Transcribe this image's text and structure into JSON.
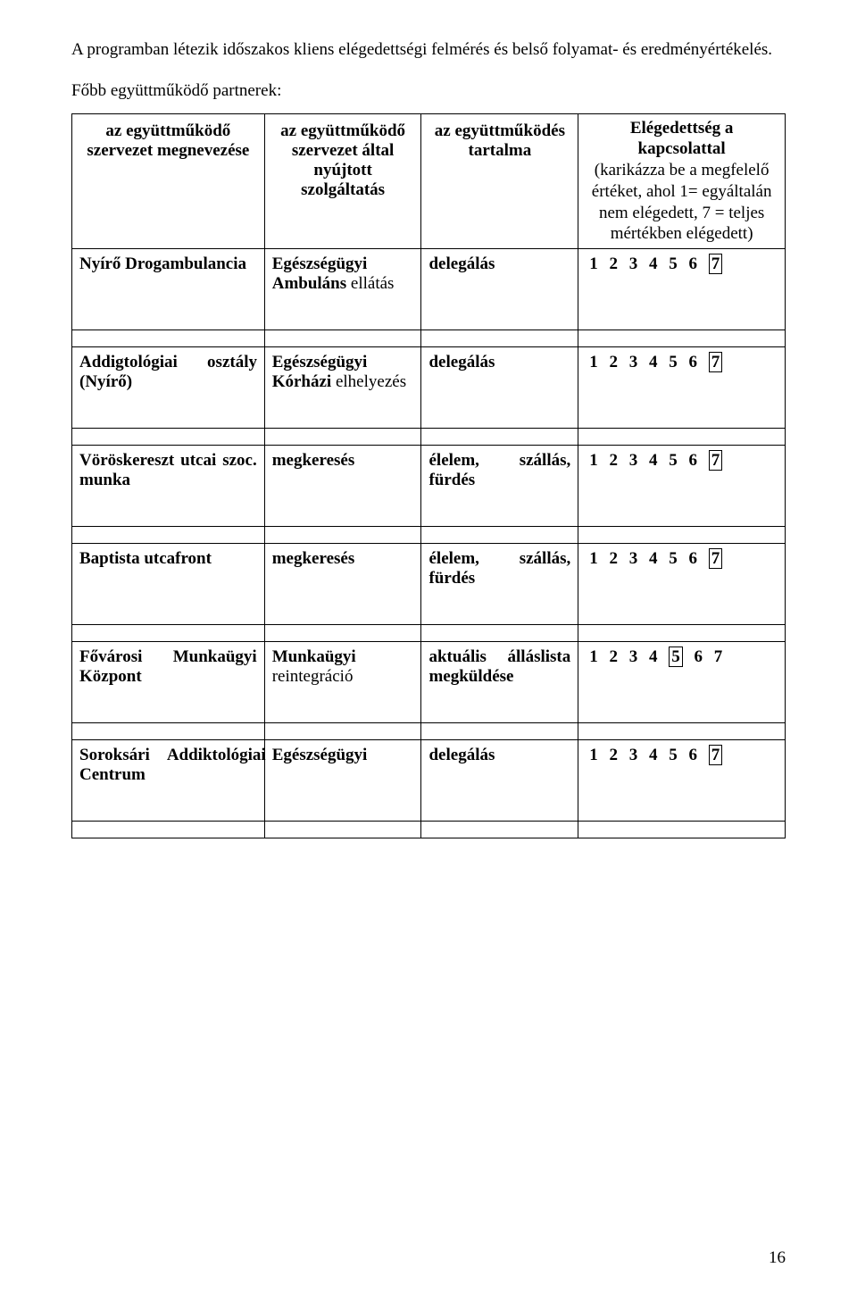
{
  "intro_paragraph": "A programban létezik időszakos kliens elégedettségi felmérés és belső folyamat- és eredményértékelés.",
  "subheading": "Főbb együttműködő partnerek:",
  "headers": {
    "col1": "az együttműködő szervezet megnevezése",
    "col2": "az együttműködő szervezet által nyújtott szolgáltatás",
    "col3": "az együttműködés tartalma",
    "col4_prefix": "Elégedettség a kapcsolattal",
    "col4_rest": "(karikázza be a megfelelő értéket, ahol 1= egyáltalán nem elégedett, 7 = teljes mértékben elégedett)"
  },
  "rows": [
    {
      "name_html": "<span class=\"bold\">Nyírő Drogambulancia</span>",
      "service_html": "<span class=\"bold\">Egészségügyi Ambuláns</span> ellátás",
      "content_html": "<span class=\"bold\">delegálás</span>",
      "rating_boxed": 7
    },
    {
      "name_html": "<span class=\"bold\">Addigtológiai&nbsp;&nbsp;&nbsp;&nbsp;&nbsp;&nbsp;&nbsp;osztály (Nyírő)</span>",
      "service_html": "<span class=\"bold\">Egészségügyi Kórházi</span> elhelyezés",
      "content_html": "<span class=\"bold\">delegálás</span>",
      "rating_boxed": 7
    },
    {
      "name_html": "<span class=\"bold\">Vöröskereszt utcai szoc. munka</span>",
      "service_html": "<span class=\"bold\">megkeresés</span>",
      "content_html": "<span class=\"bold\">élelem,&nbsp;&nbsp;&nbsp;&nbsp;szállás, fürdés</span>",
      "rating_boxed": 7
    },
    {
      "name_html": "<span class=\"bold\">Baptista utcafront</span>",
      "service_html": "<span class=\"bold\">megkeresés</span>",
      "content_html": "<span class=\"bold\">élelem,&nbsp;&nbsp;&nbsp;&nbsp;szállás, fürdés</span>",
      "rating_boxed": 7
    },
    {
      "name_html": "<span class=\"bold\">Fővárosi&nbsp;&nbsp;&nbsp;&nbsp;&nbsp;&nbsp;&nbsp;Munkaügyi Központ</span>",
      "service_html": "<span class=\"bold\">Munkaügyi</span> reintegráció",
      "content_html": "<span class=\"bold\">aktuális álláslista megküldése</span>",
      "rating_boxed": 5
    },
    {
      "name_html": "<span class=\"bold\">Soroksári&nbsp;&nbsp;&nbsp;&nbsp;Addiktológiai Centrum</span>",
      "service_html": "<span class=\"bold\">Egészségügyi</span>",
      "content_html": "<span class=\"bold\">delegálás</span>",
      "rating_boxed": 7
    }
  ],
  "rating_values": [
    1,
    2,
    3,
    4,
    5,
    6,
    7
  ],
  "page_number": "16"
}
